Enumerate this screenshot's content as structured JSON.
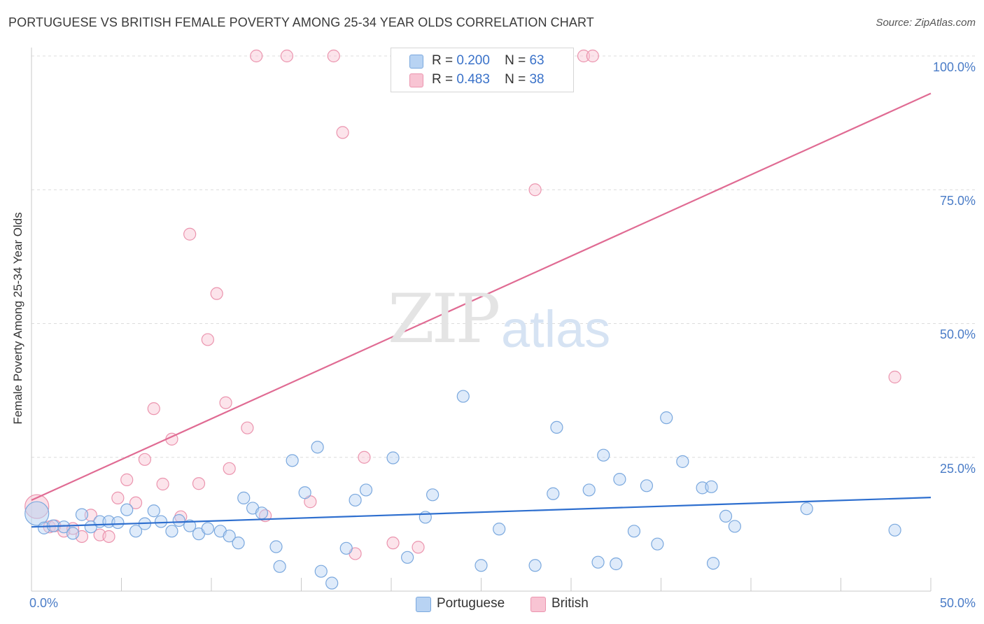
{
  "title": "PORTUGUESE VS BRITISH FEMALE POVERTY AMONG 25-34 YEAR OLDS CORRELATION CHART",
  "source": "Source: ZipAtlas.com",
  "watermark": {
    "zip": "ZIP",
    "atlas": "atlas"
  },
  "legend": {
    "portuguese": {
      "r_label": "R =",
      "r_value": "0.200",
      "n_label": "N =",
      "n_value": "63"
    },
    "british": {
      "r_label": "R =",
      "r_value": "0.483",
      "n_label": "N =",
      "n_value": "38"
    }
  },
  "bottom_legend": {
    "portuguese": "Portuguese",
    "british": "British"
  },
  "colors": {
    "portuguese_fill": "#b8d3f3",
    "portuguese_stroke": "#7aa8de",
    "portuguese_line": "#2e6fcf",
    "british_fill": "#f8c4d3",
    "british_stroke": "#eb94ae",
    "british_line": "#e06b93",
    "grid": "#dcdcdc",
    "tick_text": "#4a7cc7"
  },
  "chart_data": {
    "type": "scatter",
    "title": "PORTUGUESE VS BRITISH FEMALE POVERTY AMONG 25-34 YEAR OLDS CORRELATION CHART",
    "xlabel": "",
    "ylabel": "Female Poverty Among 25-34 Year Olds",
    "xlim": [
      0,
      50
    ],
    "ylim": [
      0,
      100
    ],
    "x_tick_labels": [
      "0.0%",
      "50.0%"
    ],
    "y_tick_labels": [
      "100.0%",
      "75.0%",
      "50.0%",
      "25.0%"
    ],
    "y_ticks": [
      100,
      75,
      50,
      25
    ],
    "grid": true,
    "legend_position": "top-center",
    "series": [
      {
        "name": "Portuguese",
        "r": 0.2,
        "n": 63,
        "trend": {
          "x": [
            0,
            50
          ],
          "y": [
            12.0,
            17.5
          ]
        },
        "points": [
          {
            "x": 0.3,
            "y": 14.5,
            "big": true
          },
          {
            "x": 0.7,
            "y": 11.8
          },
          {
            "x": 1.2,
            "y": 12.2
          },
          {
            "x": 1.8,
            "y": 12.0
          },
          {
            "x": 2.3,
            "y": 10.8
          },
          {
            "x": 2.8,
            "y": 14.3
          },
          {
            "x": 3.3,
            "y": 12.0
          },
          {
            "x": 3.8,
            "y": 13.0
          },
          {
            "x": 4.3,
            "y": 13.0
          },
          {
            "x": 4.8,
            "y": 12.8
          },
          {
            "x": 5.3,
            "y": 15.2
          },
          {
            "x": 5.8,
            "y": 11.2
          },
          {
            "x": 6.3,
            "y": 12.6
          },
          {
            "x": 6.8,
            "y": 15.0
          },
          {
            "x": 7.2,
            "y": 13.0
          },
          {
            "x": 7.8,
            "y": 11.2
          },
          {
            "x": 8.2,
            "y": 13.2
          },
          {
            "x": 8.8,
            "y": 12.2
          },
          {
            "x": 9.3,
            "y": 10.7
          },
          {
            "x": 9.8,
            "y": 11.7
          },
          {
            "x": 10.5,
            "y": 11.2
          },
          {
            "x": 11.0,
            "y": 10.3
          },
          {
            "x": 11.5,
            "y": 9.0
          },
          {
            "x": 11.8,
            "y": 17.4
          },
          {
            "x": 12.3,
            "y": 15.5
          },
          {
            "x": 12.8,
            "y": 14.6
          },
          {
            "x": 13.6,
            "y": 8.3
          },
          {
            "x": 13.8,
            "y": 4.6
          },
          {
            "x": 14.5,
            "y": 24.4
          },
          {
            "x": 15.2,
            "y": 18.4
          },
          {
            "x": 15.9,
            "y": 26.9
          },
          {
            "x": 16.1,
            "y": 3.7
          },
          {
            "x": 16.7,
            "y": 1.5
          },
          {
            "x": 17.5,
            "y": 8.0
          },
          {
            "x": 18.0,
            "y": 17.0
          },
          {
            "x": 18.6,
            "y": 18.9
          },
          {
            "x": 20.1,
            "y": 24.9
          },
          {
            "x": 20.9,
            "y": 6.3
          },
          {
            "x": 21.9,
            "y": 13.8
          },
          {
            "x": 22.3,
            "y": 18.0
          },
          {
            "x": 24.0,
            "y": 36.4
          },
          {
            "x": 25.0,
            "y": 4.8
          },
          {
            "x": 26.0,
            "y": 11.6
          },
          {
            "x": 28.0,
            "y": 4.8
          },
          {
            "x": 29.0,
            "y": 18.2
          },
          {
            "x": 29.2,
            "y": 30.6
          },
          {
            "x": 31.0,
            "y": 18.9
          },
          {
            "x": 31.5,
            "y": 5.4
          },
          {
            "x": 31.8,
            "y": 25.4
          },
          {
            "x": 32.5,
            "y": 5.1
          },
          {
            "x": 32.7,
            "y": 20.9
          },
          {
            "x": 33.5,
            "y": 11.2
          },
          {
            "x": 34.2,
            "y": 19.7
          },
          {
            "x": 34.8,
            "y": 8.8
          },
          {
            "x": 35.3,
            "y": 32.4
          },
          {
            "x": 36.2,
            "y": 24.2
          },
          {
            "x": 37.3,
            "y": 19.3
          },
          {
            "x": 37.8,
            "y": 19.5
          },
          {
            "x": 37.9,
            "y": 5.2
          },
          {
            "x": 38.6,
            "y": 14.0
          },
          {
            "x": 39.1,
            "y": 12.1
          },
          {
            "x": 43.1,
            "y": 15.4
          },
          {
            "x": 48.0,
            "y": 11.4
          }
        ]
      },
      {
        "name": "British",
        "r": 0.483,
        "n": 38,
        "trend": {
          "x": [
            0,
            50
          ],
          "y": [
            17.0,
            93.0
          ]
        },
        "points": [
          {
            "x": 0.3,
            "y": 15.8,
            "big": true
          },
          {
            "x": 1.0,
            "y": 12.0
          },
          {
            "x": 1.3,
            "y": 12.2
          },
          {
            "x": 1.8,
            "y": 11.2
          },
          {
            "x": 2.3,
            "y": 11.7
          },
          {
            "x": 2.8,
            "y": 10.2
          },
          {
            "x": 3.3,
            "y": 14.2
          },
          {
            "x": 3.8,
            "y": 10.5
          },
          {
            "x": 4.3,
            "y": 10.2
          },
          {
            "x": 4.8,
            "y": 17.4
          },
          {
            "x": 5.3,
            "y": 20.8
          },
          {
            "x": 5.8,
            "y": 16.5
          },
          {
            "x": 6.3,
            "y": 24.6
          },
          {
            "x": 6.8,
            "y": 34.1
          },
          {
            "x": 7.3,
            "y": 20.0
          },
          {
            "x": 7.8,
            "y": 28.4
          },
          {
            "x": 8.3,
            "y": 13.9
          },
          {
            "x": 8.8,
            "y": 66.7
          },
          {
            "x": 9.3,
            "y": 20.1
          },
          {
            "x": 9.8,
            "y": 47.0
          },
          {
            "x": 10.3,
            "y": 55.6
          },
          {
            "x": 10.8,
            "y": 35.2
          },
          {
            "x": 11.0,
            "y": 22.9
          },
          {
            "x": 12.0,
            "y": 30.5
          },
          {
            "x": 12.5,
            "y": 100
          },
          {
            "x": 13.0,
            "y": 14.1
          },
          {
            "x": 14.2,
            "y": 100
          },
          {
            "x": 15.5,
            "y": 16.7
          },
          {
            "x": 16.8,
            "y": 100
          },
          {
            "x": 17.3,
            "y": 85.7
          },
          {
            "x": 18.0,
            "y": 7.0
          },
          {
            "x": 18.5,
            "y": 25.0
          },
          {
            "x": 20.1,
            "y": 9.0
          },
          {
            "x": 21.5,
            "y": 8.2
          },
          {
            "x": 28.0,
            "y": 75.0
          },
          {
            "x": 30.7,
            "y": 100
          },
          {
            "x": 31.2,
            "y": 100
          },
          {
            "x": 48.0,
            "y": 40.0
          }
        ]
      }
    ]
  }
}
